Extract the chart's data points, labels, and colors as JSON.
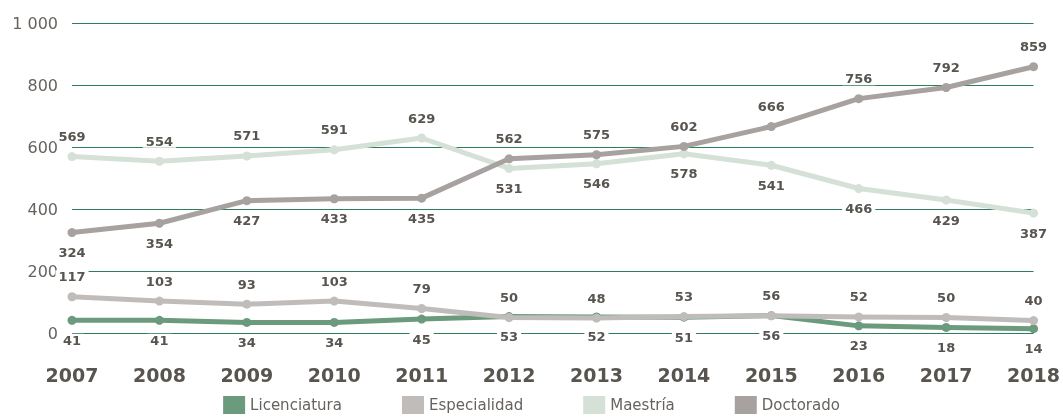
{
  "chart_data": {
    "type": "line",
    "categories": [
      "2007",
      "2008",
      "2009",
      "2010",
      "2011",
      "2012",
      "2013",
      "2014",
      "2015",
      "2016",
      "2017",
      "2018"
    ],
    "series": [
      {
        "name": "Licenciatura",
        "color": "#6b9a7c",
        "values": [
          41,
          41,
          34,
          34,
          45,
          53,
          52,
          51,
          56,
          23,
          18,
          14
        ]
      },
      {
        "name": "Especialidad",
        "color": "#c0bcba",
        "values": [
          117,
          103,
          93,
          103,
          79,
          50,
          48,
          53,
          56,
          52,
          50,
          40
        ]
      },
      {
        "name": "Maestría",
        "color": "#d5e0d7",
        "values": [
          569,
          554,
          571,
          591,
          629,
          531,
          546,
          578,
          541,
          466,
          429,
          387
        ]
      },
      {
        "name": "Doctorado",
        "color": "#a7a19f",
        "values": [
          324,
          354,
          427,
          433,
          435,
          562,
          575,
          602,
          666,
          756,
          792,
          859
        ]
      }
    ],
    "ylim": [
      0,
      1000
    ],
    "yticks": [
      0,
      200,
      400,
      600,
      800,
      {
        "value": 1000,
        "label": "1 000"
      }
    ],
    "grid": "y",
    "legend": "bottom",
    "marker": "circle",
    "data_labels": true
  }
}
